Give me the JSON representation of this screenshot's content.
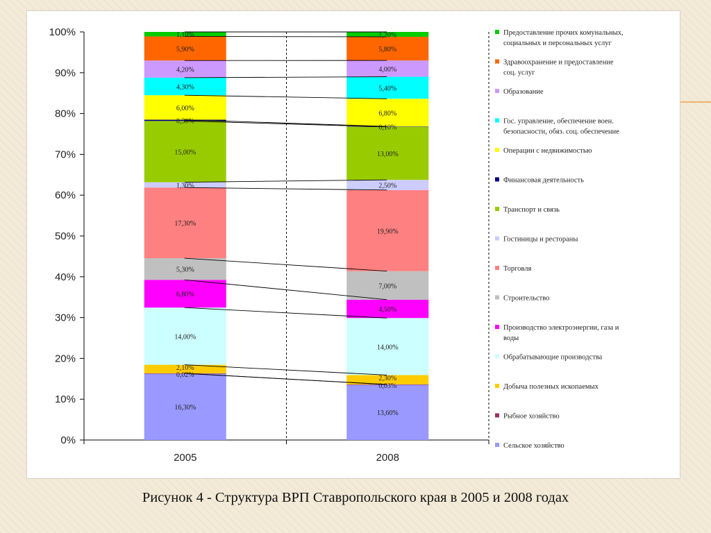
{
  "caption": "Рисунок 4 -  Структура ВРП Ставропольского края в 2005 и  2008 годах",
  "chart_data": {
    "type": "bar",
    "stacked": true,
    "normalized": true,
    "categories": [
      "2005",
      "2008"
    ],
    "y_ticks": [
      "0%",
      "10%",
      "20%",
      "30%",
      "40%",
      "50%",
      "60%",
      "70%",
      "80%",
      "90%",
      "100%"
    ],
    "ylim": [
      0,
      100
    ],
    "legend_position": "right",
    "series": [
      {
        "name": "Сельское хозяйство",
        "color": "#9999ff",
        "values": [
          16.3,
          13.6
        ],
        "labels": [
          "16,30%",
          "13,60%"
        ]
      },
      {
        "name": "Рыбное хозяйство",
        "color": "#993366",
        "values": [
          0.02,
          0.03
        ],
        "labels": [
          "0,02%",
          "0,03%"
        ]
      },
      {
        "name": "Добыча полезных ископаемых",
        "color": "#ffcc00",
        "values": [
          2.1,
          2.3
        ],
        "labels": [
          "2,10%",
          "2,30%"
        ]
      },
      {
        "name": "Обрабатывающие производства",
        "color": "#ccffff",
        "values": [
          14.0,
          14.0
        ],
        "labels": [
          "14,00%",
          "14,00%"
        ]
      },
      {
        "name": "Производство электроэнергии, газа и воды",
        "color": "#ff00ff",
        "values": [
          6.8,
          4.5
        ],
        "labels": [
          "6,80%",
          "4,50%"
        ]
      },
      {
        "name": "Строительство",
        "color": "#c0c0c0",
        "values": [
          5.3,
          7.0
        ],
        "labels": [
          "5,30%",
          "7,00%"
        ]
      },
      {
        "name": "Торговля",
        "color": "#ff8080",
        "values": [
          17.3,
          19.9
        ],
        "labels": [
          "17,30%",
          "19,90%"
        ]
      },
      {
        "name": "Гостиницы и рестораны",
        "color": "#ccccff",
        "values": [
          1.3,
          2.5
        ],
        "labels": [
          "1,30%",
          "2,50%"
        ]
      },
      {
        "name": "Транспорт и связь",
        "color": "#99cc00",
        "values": [
          15.0,
          13.0
        ],
        "labels": [
          "15,00%",
          "13,00%"
        ]
      },
      {
        "name": "Финансовая деятельность",
        "color": "#000080",
        "values": [
          0.3,
          0.1
        ],
        "labels": [
          "0,30%",
          "0,10%"
        ]
      },
      {
        "name": "Операции с недвижимостью",
        "color": "#ffff00",
        "values": [
          6.0,
          6.8
        ],
        "labels": [
          "6,00%",
          "6,80%"
        ]
      },
      {
        "name": "Гос. управление, обеспечение воен. безопасности, обяз. соц. обеспечение",
        "color": "#00ffff",
        "values": [
          4.3,
          5.4
        ],
        "labels": [
          "4,30%",
          "5,40%"
        ]
      },
      {
        "name": "Образование",
        "color": "#cc99ff",
        "values": [
          4.2,
          4.0
        ],
        "labels": [
          "4,20%",
          "4,00%"
        ]
      },
      {
        "name": "Здравоохранение и предоставление соц. услуг",
        "color": "#ff6600",
        "values": [
          5.9,
          5.8
        ],
        "labels": [
          "5,90%",
          "5,80%"
        ]
      },
      {
        "name": "Предоставление прочих комунальных, социальных и персональных услуг",
        "color": "#00cc00",
        "values": [
          1.1,
          1.2
        ],
        "labels": [
          "1,10%",
          "1,20%"
        ]
      }
    ],
    "legend_lines": [
      [
        "Предоставление прочих комунальных,",
        "социальных и персональных услуг"
      ],
      [
        "Здравоохранение и предоставление",
        "соц. услуг"
      ],
      [
        "Образование"
      ],
      [
        "Гос. управление, обеспечение воен.",
        "безопасности, обяз. соц. обеспечение"
      ],
      [
        "Операции с недвижимостью"
      ],
      [
        "Финансовая деятельность"
      ],
      [
        "Транспорт и связь"
      ],
      [
        "Гостиницы и рестораны"
      ],
      [
        "Торговля"
      ],
      [
        "Строительство"
      ],
      [
        "Производство электроэнергии, газа и",
        "воды"
      ],
      [
        "Обрабатывающие производства"
      ],
      [
        "Добыча полезных ископаемых"
      ],
      [
        "Рыбное хозяйство"
      ],
      [
        "Сельское хозяйство"
      ]
    ]
  }
}
